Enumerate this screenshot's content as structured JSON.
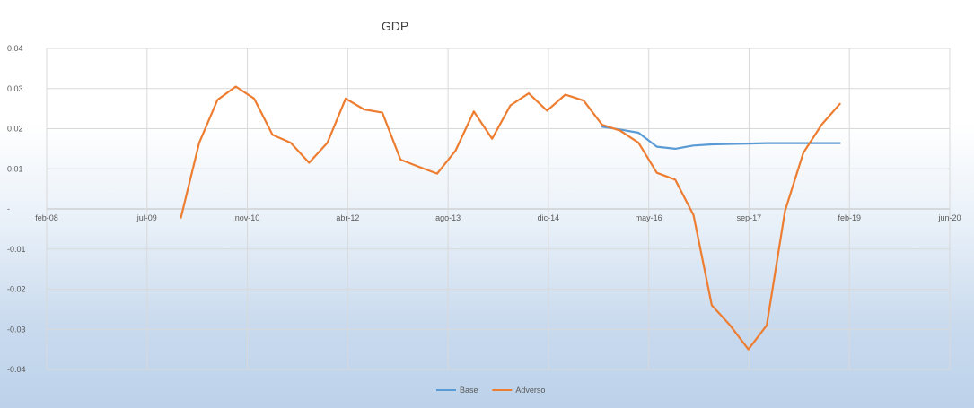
{
  "chart_data": {
    "type": "line",
    "title": "GDP",
    "xlabel": "",
    "ylabel": "",
    "x_ticks": [
      "feb-08",
      "jul-09",
      "nov-10",
      "abr-12",
      "ago-13",
      "dic-14",
      "may-16",
      "sep-17",
      "feb-19",
      "jun-20"
    ],
    "y_ticks": [
      "0.04",
      "0.03",
      "0.02",
      "0.01",
      "-",
      "-0.01",
      "-0.02",
      "-0.03",
      "-0.04"
    ],
    "ylim": [
      -0.04,
      0.04
    ],
    "xlim": [
      "2008-02",
      "2020-06"
    ],
    "grid": true,
    "legend_position": "bottom",
    "series": [
      {
        "name": "Base",
        "color": "#5b9bd5",
        "points": [
          [
            "2015-09",
            0.0205
          ],
          [
            "2015-12",
            0.0198
          ],
          [
            "2016-03",
            0.019
          ],
          [
            "2016-06",
            0.0155
          ],
          [
            "2016-09",
            0.015
          ],
          [
            "2016-12",
            0.0158
          ],
          [
            "2017-03",
            0.0161
          ],
          [
            "2017-06",
            0.0162
          ],
          [
            "2017-09",
            0.0163
          ],
          [
            "2017-12",
            0.0164
          ],
          [
            "2018-03",
            0.0164
          ],
          [
            "2018-06",
            0.0164
          ],
          [
            "2018-09",
            0.0164
          ],
          [
            "2018-12",
            0.0164
          ]
        ]
      },
      {
        "name": "Adverso",
        "color": "#ed7d31",
        "points": [
          [
            "2009-12",
            -0.0022
          ],
          [
            "2010-03",
            0.0165
          ],
          [
            "2010-06",
            0.0272
          ],
          [
            "2010-09",
            0.0305
          ],
          [
            "2010-12",
            0.0275
          ],
          [
            "2011-03",
            0.0185
          ],
          [
            "2011-06",
            0.0165
          ],
          [
            "2011-09",
            0.0115
          ],
          [
            "2011-12",
            0.0165
          ],
          [
            "2012-03",
            0.0275
          ],
          [
            "2012-06",
            0.0248
          ],
          [
            "2012-09",
            0.024
          ],
          [
            "2012-12",
            0.0123
          ],
          [
            "2013-03",
            0.0105
          ],
          [
            "2013-06",
            0.0088
          ],
          [
            "2013-09",
            0.0145
          ],
          [
            "2013-12",
            0.0243
          ],
          [
            "2014-03",
            0.0175
          ],
          [
            "2014-06",
            0.0258
          ],
          [
            "2014-09",
            0.0288
          ],
          [
            "2014-12",
            0.0245
          ],
          [
            "2015-03",
            0.0285
          ],
          [
            "2015-06",
            0.027
          ],
          [
            "2015-09",
            0.021
          ],
          [
            "2015-12",
            0.0195
          ],
          [
            "2016-03",
            0.0165
          ],
          [
            "2016-06",
            0.009
          ],
          [
            "2016-09",
            0.0073
          ],
          [
            "2016-12",
            -0.0015
          ],
          [
            "2017-03",
            -0.024
          ],
          [
            "2017-06",
            -0.029
          ],
          [
            "2017-09",
            -0.035
          ],
          [
            "2017-12",
            -0.029
          ],
          [
            "2018-03",
            -0.0005
          ],
          [
            "2018-06",
            0.014
          ],
          [
            "2018-09",
            0.021
          ],
          [
            "2018-12",
            0.0262
          ]
        ]
      }
    ]
  }
}
